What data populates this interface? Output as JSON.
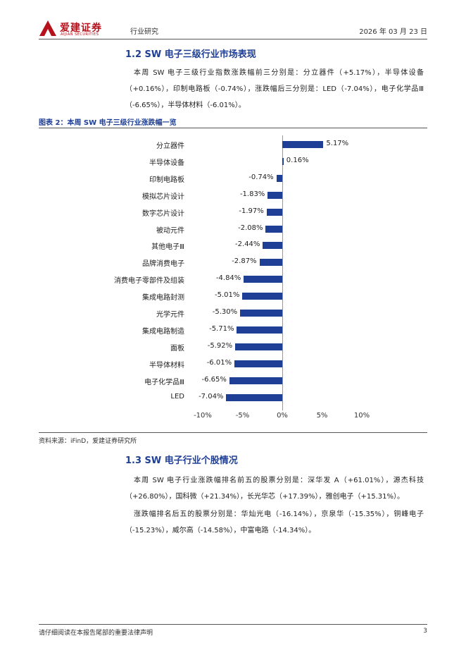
{
  "header": {
    "logo_cn": "爱建证券",
    "logo_en": "AIJIAN SECURITIES",
    "category": "行业研究",
    "date": "2026 年 03 月 23 日"
  },
  "section_1_2": {
    "title": "1.2 SW 电子三级行业市场表现",
    "paragraph": "本周 SW 电子三级行业指数涨跌幅前三分别是：分立器件（+5.17%），半导体设备（+0.16%），印制电路板（-0.74%），涨跌幅后三分别是：LED（-7.04%），电子化学品Ⅲ（-6.65%），半导体材料（-6.01%）。"
  },
  "figure": {
    "title": "图表 2：本周 SW 电子三级行业涨跌幅一览",
    "source": "资料来源：iFinD，爱建证券研究所"
  },
  "chart_data": {
    "type": "bar",
    "orientation": "horizontal",
    "categories": [
      "分立器件",
      "半导体设备",
      "印制电路板",
      "模拟芯片设计",
      "数字芯片设计",
      "被动元件",
      "其他电子Ⅲ",
      "品牌消费电子",
      "消费电子零部件及组装",
      "集成电路封测",
      "光学元件",
      "集成电路制造",
      "面板",
      "半导体材料",
      "电子化学品Ⅲ",
      "LED"
    ],
    "values": [
      5.17,
      0.16,
      -0.74,
      -1.83,
      -1.97,
      -2.08,
      -2.44,
      -2.87,
      -4.84,
      -5.01,
      -5.3,
      -5.71,
      -5.92,
      -6.01,
      -6.65,
      -7.04
    ],
    "value_labels": [
      "5.17%",
      "0.16%",
      "-0.74%",
      "-1.83%",
      "-1.97%",
      "-2.08%",
      "-2.44%",
      "-2.87%",
      "-4.84%",
      "-5.01%",
      "-5.30%",
      "-5.71%",
      "-5.92%",
      "-6.01%",
      "-6.65%",
      "-7.04%"
    ],
    "xlim": [
      -10,
      10
    ],
    "ticks": [
      -10,
      -5,
      0,
      5,
      10
    ],
    "tick_labels": [
      "-10%",
      "-5%",
      "0%",
      "5%",
      "10%"
    ],
    "bar_color": "#1f3f96",
    "grid": false,
    "legend": "none"
  },
  "section_1_3": {
    "title": "1.3 SW 电子行业个股情况",
    "paragraph1": "本周 SW 电子行业涨跌幅排名前五的股票分别是：深华发 A（+61.01%），源杰科技（+26.80%），国科微（+21.34%），长光华芯（+17.39%），雅创电子（+15.31%）。",
    "paragraph2": "涨跌幅排名后五的股票分别是：华灿光电（-16.14%），京泉华（-15.35%），铜峰电子（-15.23%），威尔高（-14.58%），中富电路（-14.34%）。"
  },
  "footer": {
    "disclaimer": "请仔细阅读在本报告尾部的重要法律声明",
    "page": "3"
  },
  "colors": {
    "brand_red": "#b5121b",
    "title_blue": "#1f3f96"
  }
}
